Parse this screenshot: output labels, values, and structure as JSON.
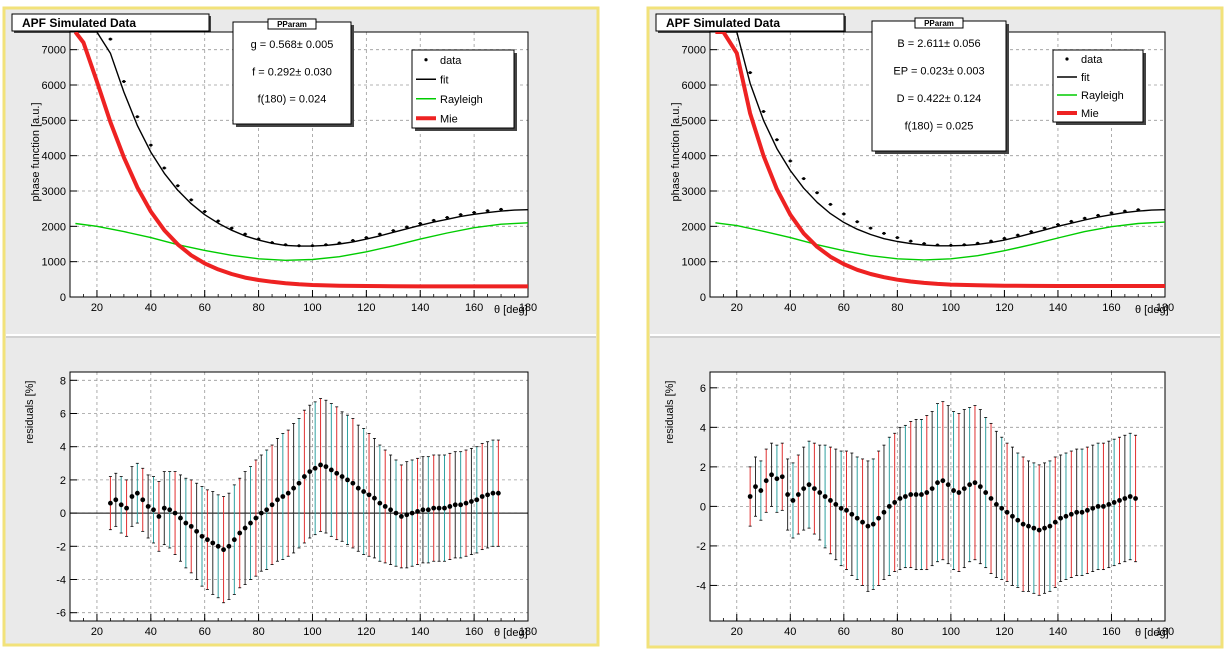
{
  "panels": [
    {
      "canvas_title": "APF Simulated Data",
      "stats_title": "PParam",
      "stats_lines": [
        "g = 0.568± 0.005",
        "f = 0.292± 0.030",
        "f(180) = 0.024"
      ],
      "legend": [
        {
          "label": "data",
          "style": "marker"
        },
        {
          "label": "fit",
          "style": "line",
          "color": "#000000"
        },
        {
          "label": "Rayleigh",
          "style": "line",
          "color": "#00cc00"
        },
        {
          "label": "Mie",
          "style": "thick",
          "color": "#ee2222"
        }
      ]
    },
    {
      "canvas_title": "APF Simulated Data",
      "stats_title": "PParam",
      "stats_lines": [
        "B = 2.611± 0.056",
        "EP = 0.023± 0.003",
        "D = 0.422± 0.124",
        "f(180) = 0.025"
      ],
      "legend": [
        {
          "label": "data",
          "style": "marker"
        },
        {
          "label": "fit",
          "style": "line",
          "color": "#000000"
        },
        {
          "label": "Rayleigh",
          "style": "line",
          "color": "#00cc00"
        },
        {
          "label": "Mie",
          "style": "thick",
          "color": "#ee2222"
        }
      ]
    }
  ],
  "chart_data": [
    {
      "type": "line",
      "title": "",
      "xlabel": "θ [deg]",
      "ylabel": "phase function [a.u.]",
      "xlim": [
        10,
        180
      ],
      "ylim": [
        0,
        7500
      ],
      "xticks": [
        20,
        40,
        60,
        80,
        100,
        120,
        140,
        160,
        180
      ],
      "yticks": [
        0,
        1000,
        2000,
        3000,
        4000,
        5000,
        6000,
        7000
      ],
      "grid": true,
      "legend_position": "top-right",
      "series": [
        {
          "name": "data",
          "style": "markers",
          "color": "#000000",
          "x": [
            25,
            30,
            35,
            40,
            45,
            50,
            55,
            60,
            65,
            70,
            75,
            80,
            85,
            90,
            95,
            100,
            105,
            110,
            115,
            120,
            125,
            130,
            135,
            140,
            145,
            150,
            155,
            160,
            165,
            170
          ],
          "y": [
            7300,
            6100,
            5100,
            4300,
            3650,
            3150,
            2750,
            2420,
            2150,
            1950,
            1780,
            1640,
            1540,
            1480,
            1450,
            1450,
            1480,
            1530,
            1600,
            1680,
            1780,
            1880,
            1980,
            2080,
            2170,
            2250,
            2330,
            2390,
            2440,
            2480
          ]
        },
        {
          "name": "fit",
          "style": "line",
          "color": "#000000",
          "x": [
            12,
            15,
            20,
            25,
            30,
            35,
            40,
            45,
            50,
            55,
            60,
            65,
            70,
            75,
            80,
            85,
            90,
            95,
            100,
            105,
            110,
            115,
            120,
            125,
            130,
            135,
            140,
            145,
            150,
            155,
            160,
            165,
            170,
            175,
            180
          ],
          "y": [
            7500,
            7500,
            7500,
            6900,
            5800,
            4850,
            4100,
            3500,
            3020,
            2640,
            2330,
            2090,
            1890,
            1730,
            1610,
            1520,
            1460,
            1440,
            1440,
            1460,
            1500,
            1560,
            1640,
            1730,
            1830,
            1930,
            2030,
            2120,
            2200,
            2280,
            2340,
            2390,
            2430,
            2460,
            2470
          ]
        },
        {
          "name": "Rayleigh",
          "style": "line",
          "color": "#00cc00",
          "x": [
            12,
            20,
            30,
            40,
            50,
            60,
            70,
            80,
            90,
            100,
            110,
            120,
            130,
            140,
            150,
            160,
            170,
            180
          ],
          "y": [
            2080,
            2000,
            1850,
            1680,
            1480,
            1320,
            1180,
            1080,
            1040,
            1060,
            1140,
            1280,
            1450,
            1640,
            1810,
            1960,
            2060,
            2100
          ]
        },
        {
          "name": "Mie",
          "style": "thick",
          "color": "#ee2222",
          "x": [
            12,
            15,
            20,
            25,
            30,
            35,
            40,
            45,
            50,
            55,
            60,
            65,
            70,
            75,
            80,
            85,
            90,
            95,
            100,
            110,
            120,
            130,
            140,
            150,
            160,
            170,
            180
          ],
          "y": [
            7500,
            7200,
            6100,
            4950,
            3950,
            3100,
            2420,
            1890,
            1490,
            1180,
            950,
            780,
            650,
            550,
            480,
            430,
            390,
            360,
            340,
            320,
            310,
            305,
            300,
            300,
            300,
            300,
            300
          ]
        }
      ]
    },
    {
      "type": "scatter",
      "title": "",
      "xlabel": "θ [deg]",
      "ylabel": "residuals [%]",
      "xlim": [
        10,
        180
      ],
      "ylim": [
        -6.5,
        8.5
      ],
      "xticks": [
        20,
        40,
        60,
        80,
        100,
        120,
        140,
        160,
        180
      ],
      "yticks": [
        -6,
        -4,
        -2,
        0,
        2,
        4,
        6,
        8
      ],
      "grid": true,
      "zero_line": true,
      "x": [
        25,
        27,
        29,
        31,
        33,
        35,
        37,
        39,
        41,
        43,
        45,
        47,
        49,
        51,
        53,
        55,
        57,
        59,
        61,
        63,
        65,
        67,
        69,
        71,
        73,
        75,
        77,
        79,
        81,
        83,
        85,
        87,
        89,
        91,
        93,
        95,
        97,
        99,
        101,
        103,
        105,
        107,
        109,
        111,
        113,
        115,
        117,
        119,
        121,
        123,
        125,
        127,
        129,
        131,
        133,
        135,
        137,
        139,
        141,
        143,
        145,
        147,
        149,
        151,
        153,
        155,
        157,
        159,
        161,
        163,
        165,
        167,
        169
      ],
      "y": [
        0.6,
        0.8,
        0.5,
        0.3,
        1.0,
        1.2,
        0.8,
        0.4,
        0.2,
        -0.2,
        0.3,
        0.2,
        0.0,
        -0.3,
        -0.6,
        -0.8,
        -1.1,
        -1.4,
        -1.6,
        -1.8,
        -2.0,
        -2.2,
        -2.0,
        -1.6,
        -1.2,
        -0.9,
        -0.6,
        -0.3,
        0.0,
        0.2,
        0.5,
        0.8,
        1.0,
        1.2,
        1.5,
        1.8,
        2.2,
        2.5,
        2.7,
        2.9,
        2.8,
        2.6,
        2.4,
        2.2,
        2.0,
        1.8,
        1.5,
        1.3,
        1.1,
        0.9,
        0.6,
        0.4,
        0.2,
        0.0,
        -0.2,
        -0.1,
        0.0,
        0.1,
        0.2,
        0.2,
        0.3,
        0.3,
        0.3,
        0.4,
        0.5,
        0.5,
        0.6,
        0.7,
        0.8,
        1.0,
        1.1,
        1.2,
        1.2
      ],
      "err": [
        1.6,
        1.6,
        1.7,
        1.7,
        1.8,
        1.8,
        1.9,
        1.9,
        2.0,
        2.1,
        2.2,
        2.3,
        2.5,
        2.6,
        2.7,
        2.8,
        2.9,
        3.0,
        3.0,
        3.1,
        3.1,
        3.2,
        3.2,
        3.3,
        3.3,
        3.4,
        3.4,
        3.5,
        3.5,
        3.6,
        3.6,
        3.7,
        3.8,
        3.8,
        3.9,
        3.9,
        4.0,
        4.0,
        4.0,
        4.0,
        4.0,
        4.0,
        4.0,
        3.9,
        3.9,
        3.9,
        3.8,
        3.8,
        3.7,
        3.6,
        3.5,
        3.4,
        3.3,
        3.2,
        3.1,
        3.2,
        3.2,
        3.2,
        3.2,
        3.2,
        3.2,
        3.2,
        3.2,
        3.2,
        3.2,
        3.2,
        3.2,
        3.2,
        3.2,
        3.2,
        3.2,
        3.2,
        3.2
      ]
    },
    {
      "type": "line",
      "title": "",
      "xlabel": "θ [deg]",
      "ylabel": "phase function [a.u.]",
      "xlim": [
        10,
        180
      ],
      "ylim": [
        0,
        7500
      ],
      "xticks": [
        20,
        40,
        60,
        80,
        100,
        120,
        140,
        160,
        180
      ],
      "yticks": [
        0,
        1000,
        2000,
        3000,
        4000,
        5000,
        6000,
        7000
      ],
      "grid": true,
      "legend_position": "top-right",
      "series": [
        {
          "name": "data",
          "style": "markers",
          "color": "#000000",
          "x": [
            25,
            30,
            35,
            40,
            45,
            50,
            55,
            60,
            65,
            70,
            75,
            80,
            85,
            90,
            95,
            100,
            105,
            110,
            115,
            120,
            125,
            130,
            135,
            140,
            145,
            150,
            155,
            160,
            165,
            170
          ],
          "y": [
            6350,
            5250,
            4450,
            3850,
            3350,
            2950,
            2620,
            2350,
            2130,
            1950,
            1800,
            1680,
            1580,
            1510,
            1470,
            1460,
            1480,
            1520,
            1580,
            1660,
            1750,
            1850,
            1950,
            2050,
            2140,
            2230,
            2310,
            2380,
            2430,
            2470
          ]
        },
        {
          "name": "fit",
          "style": "line",
          "color": "#000000",
          "x": [
            12,
            15,
            20,
            25,
            30,
            35,
            40,
            45,
            50,
            55,
            60,
            65,
            70,
            75,
            80,
            85,
            90,
            95,
            100,
            105,
            110,
            115,
            120,
            125,
            130,
            135,
            140,
            145,
            150,
            155,
            160,
            165,
            170,
            175,
            180
          ],
          "y": [
            7500,
            7500,
            7500,
            6050,
            5000,
            4200,
            3580,
            3080,
            2680,
            2360,
            2110,
            1920,
            1770,
            1650,
            1570,
            1510,
            1470,
            1450,
            1450,
            1460,
            1490,
            1540,
            1610,
            1700,
            1800,
            1900,
            2000,
            2090,
            2180,
            2260,
            2330,
            2390,
            2430,
            2460,
            2470
          ]
        },
        {
          "name": "Rayleigh",
          "style": "line",
          "color": "#00cc00",
          "x": [
            12,
            20,
            30,
            40,
            50,
            60,
            70,
            80,
            90,
            100,
            110,
            120,
            130,
            140,
            150,
            160,
            170,
            180
          ],
          "y": [
            2100,
            2020,
            1860,
            1680,
            1480,
            1310,
            1170,
            1080,
            1050,
            1080,
            1170,
            1310,
            1480,
            1670,
            1850,
            1990,
            2080,
            2120
          ]
        },
        {
          "name": "Mie",
          "style": "thick",
          "color": "#ee2222",
          "x": [
            12,
            15,
            20,
            25,
            30,
            35,
            40,
            45,
            50,
            55,
            60,
            65,
            70,
            75,
            80,
            85,
            90,
            95,
            100,
            110,
            120,
            130,
            140,
            150,
            160,
            170,
            180
          ],
          "y": [
            7500,
            7500,
            6900,
            5200,
            4000,
            3050,
            2330,
            1800,
            1420,
            1140,
            930,
            770,
            650,
            560,
            490,
            440,
            400,
            370,
            350,
            330,
            320,
            315,
            310,
            310,
            310,
            310,
            310
          ]
        }
      ]
    },
    {
      "type": "scatter",
      "title": "",
      "xlabel": "θ [deg]",
      "ylabel": "residuals [%]",
      "xlim": [
        10,
        180
      ],
      "ylim": [
        -5.8,
        6.8
      ],
      "xticks": [
        20,
        40,
        60,
        80,
        100,
        120,
        140,
        160,
        180
      ],
      "yticks": [
        -4,
        -2,
        0,
        2,
        4,
        6
      ],
      "grid": true,
      "zero_line": false,
      "x": [
        25,
        27,
        29,
        31,
        33,
        35,
        37,
        39,
        41,
        43,
        45,
        47,
        49,
        51,
        53,
        55,
        57,
        59,
        61,
        63,
        65,
        67,
        69,
        71,
        73,
        75,
        77,
        79,
        81,
        83,
        85,
        87,
        89,
        91,
        93,
        95,
        97,
        99,
        101,
        103,
        105,
        107,
        109,
        111,
        113,
        115,
        117,
        119,
        121,
        123,
        125,
        127,
        129,
        131,
        133,
        135,
        137,
        139,
        141,
        143,
        145,
        147,
        149,
        151,
        153,
        155,
        157,
        159,
        161,
        163,
        165,
        167,
        169
      ],
      "y": [
        0.5,
        1.0,
        0.8,
        1.3,
        1.6,
        1.4,
        1.5,
        0.6,
        0.3,
        0.6,
        0.9,
        1.1,
        0.9,
        0.7,
        0.5,
        0.3,
        0.1,
        -0.1,
        -0.2,
        -0.4,
        -0.6,
        -0.8,
        -1.0,
        -0.9,
        -0.6,
        -0.3,
        0.0,
        0.2,
        0.4,
        0.5,
        0.6,
        0.6,
        0.6,
        0.7,
        0.9,
        1.2,
        1.3,
        1.1,
        0.8,
        0.7,
        0.9,
        1.1,
        1.2,
        1.0,
        0.7,
        0.4,
        0.1,
        -0.1,
        -0.3,
        -0.5,
        -0.7,
        -0.9,
        -1.0,
        -1.1,
        -1.2,
        -1.1,
        -1.0,
        -0.8,
        -0.6,
        -0.5,
        -0.4,
        -0.3,
        -0.3,
        -0.2,
        -0.1,
        0.0,
        0.0,
        0.1,
        0.2,
        0.3,
        0.4,
        0.5,
        0.4
      ],
      "err": [
        1.5,
        1.5,
        1.5,
        1.6,
        1.6,
        1.7,
        1.7,
        1.8,
        1.9,
        2.0,
        2.1,
        2.2,
        2.3,
        2.4,
        2.6,
        2.7,
        2.8,
        2.9,
        3.0,
        3.1,
        3.1,
        3.2,
        3.3,
        3.3,
        3.4,
        3.4,
        3.5,
        3.5,
        3.6,
        3.6,
        3.7,
        3.8,
        3.8,
        3.9,
        3.9,
        4.0,
        4.0,
        4.0,
        4.0,
        4.0,
        4.0,
        3.9,
        3.9,
        3.9,
        3.8,
        3.8,
        3.7,
        3.6,
        3.5,
        3.5,
        3.4,
        3.4,
        3.3,
        3.3,
        3.3,
        3.3,
        3.3,
        3.3,
        3.2,
        3.2,
        3.2,
        3.2,
        3.2,
        3.2,
        3.2,
        3.2,
        3.2,
        3.2,
        3.2,
        3.2,
        3.2,
        3.2,
        3.2
      ]
    }
  ]
}
